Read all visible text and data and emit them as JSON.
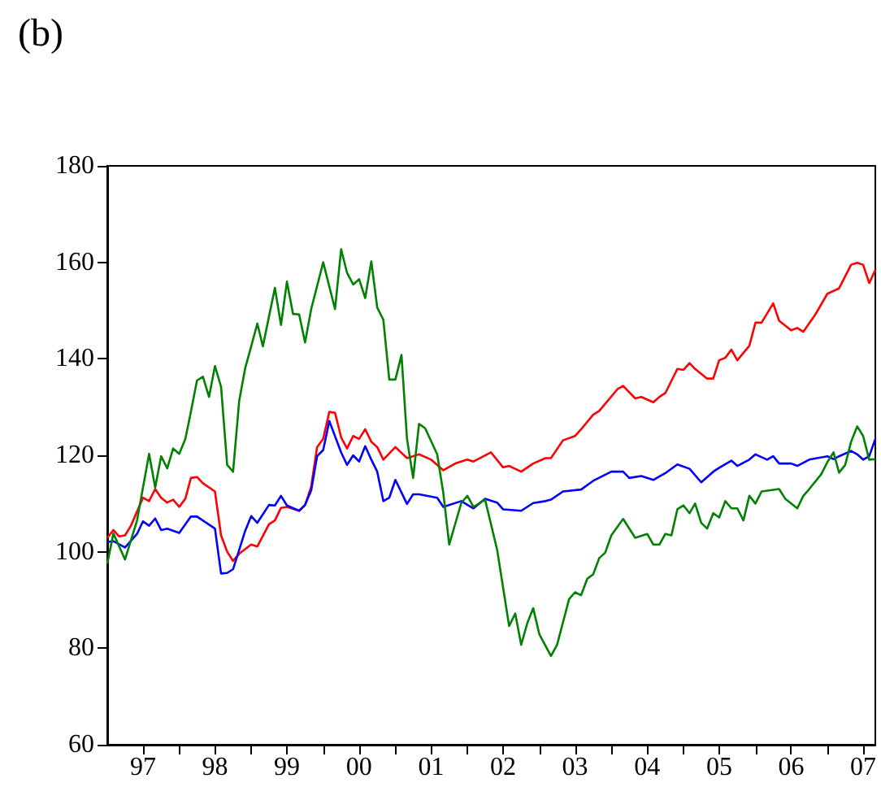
{
  "chart_data": {
    "type": "line",
    "title": "(b)",
    "xlim": [
      "1997-01",
      "2007-09"
    ],
    "xticks": [
      {
        "value": "1997-07",
        "label": "97"
      },
      {
        "value": "1998-01",
        "label": null
      },
      {
        "value": "1998-07",
        "label": "98"
      },
      {
        "value": "1999-01",
        "label": null
      },
      {
        "value": "1999-07",
        "label": "99"
      },
      {
        "value": "2000-01",
        "label": null
      },
      {
        "value": "2000-07",
        "label": "00"
      },
      {
        "value": "2001-01",
        "label": null
      },
      {
        "value": "2001-07",
        "label": "01"
      },
      {
        "value": "2002-01",
        "label": null
      },
      {
        "value": "2002-07",
        "label": "02"
      },
      {
        "value": "2003-01",
        "label": null
      },
      {
        "value": "2003-07",
        "label": "03"
      },
      {
        "value": "2004-01",
        "label": null
      },
      {
        "value": "2004-07",
        "label": "04"
      },
      {
        "value": "2005-01",
        "label": null
      },
      {
        "value": "2005-07",
        "label": "05"
      },
      {
        "value": "2006-01",
        "label": null
      },
      {
        "value": "2006-07",
        "label": "06"
      },
      {
        "value": "2007-01",
        "label": null
      },
      {
        "value": "2007-07",
        "label": "07"
      }
    ],
    "ylim": [
      60,
      180
    ],
    "yticks": [
      60,
      80,
      100,
      120,
      140,
      160,
      180
    ],
    "grid": false,
    "marker": "none",
    "line_style": "solid",
    "series": [
      {
        "color": "#ff0000",
        "x": [
          "1997-01",
          "1997-02",
          "1997-03",
          "1997-04",
          "1997-05",
          "1997-07",
          "1997-08",
          "1997-09",
          "1997-10",
          "1997-11",
          "1997-12",
          "1998-01",
          "1998-02",
          "1998-03",
          "1998-04",
          "1998-05",
          "1998-07",
          "1998-08",
          "1998-09",
          "1998-10",
          "1998-11",
          "1999-01",
          "1999-02",
          "1999-04",
          "1999-05",
          "1999-06",
          "1999-07",
          "1999-09",
          "1999-10",
          "1999-11",
          "1999-12",
          "2000-01",
          "2000-02",
          "2000-03",
          "2000-04",
          "2000-05",
          "2000-06",
          "2000-07",
          "2000-08",
          "2000-09",
          "2000-10",
          "2000-11",
          "2001-01",
          "2001-03",
          "2001-05",
          "2001-07",
          "2001-09",
          "2001-11",
          "2002-01",
          "2002-02",
          "2002-05",
          "2002-07",
          "2002-08",
          "2002-10",
          "2002-12",
          "2003-02",
          "2003-03",
          "2003-05",
          "2003-07",
          "2003-08",
          "2003-10",
          "2003-11",
          "2004-02",
          "2004-03",
          "2004-05",
          "2004-06",
          "2004-08",
          "2004-09",
          "2004-10",
          "2004-12",
          "2005-01",
          "2005-02",
          "2005-03",
          "2005-05",
          "2005-06",
          "2005-07",
          "2005-08",
          "2005-09",
          "2005-10",
          "2005-12",
          "2006-01",
          "2006-02",
          "2006-04",
          "2006-05",
          "2006-07",
          "2006-08",
          "2006-09",
          "2006-11",
          "2007-01",
          "2007-03",
          "2007-05",
          "2007-06",
          "2007-07",
          "2007-08",
          "2007-09"
        ],
        "values": [
          102.9,
          104.5,
          103.2,
          103.4,
          105.4,
          111.2,
          110.5,
          113,
          111.2,
          110.2,
          110.8,
          109.3,
          111,
          115.3,
          115.5,
          114.2,
          112.5,
          103.4,
          100,
          98.1,
          99.6,
          101.5,
          101.1,
          105.7,
          106.5,
          109.1,
          109.3,
          108.5,
          109.7,
          113.5,
          121.7,
          123.4,
          129,
          128.8,
          123.7,
          121.4,
          124,
          123.4,
          125.4,
          122.8,
          121.7,
          119.1,
          121.7,
          119.4,
          120.2,
          119.1,
          116.9,
          118.3,
          119.1,
          118.7,
          120.6,
          117.5,
          117.8,
          116.6,
          118.3,
          119.4,
          119.4,
          123.1,
          124,
          125.4,
          128.4,
          129.2,
          133.7,
          134.4,
          131.8,
          132.1,
          131,
          132.1,
          132.9,
          137.9,
          137.7,
          139.1,
          137.9,
          135.9,
          135.9,
          139.7,
          140.2,
          141.9,
          139.7,
          142.7,
          147.5,
          147.5,
          151.5,
          147.9,
          145.9,
          146.4,
          145.6,
          149.2,
          153.5,
          154.6,
          159.5,
          159.9,
          159.5,
          155.7,
          158.4
        ]
      },
      {
        "color": "#0000ff",
        "x": [
          "1997-01",
          "1997-02",
          "1997-04",
          "1997-06",
          "1997-07",
          "1997-08",
          "1997-09",
          "1997-10",
          "1997-11",
          "1998-01",
          "1998-03",
          "1998-04",
          "1998-07",
          "1998-08",
          "1998-09",
          "1998-10",
          "1998-12",
          "1999-01",
          "1999-02",
          "1999-04",
          "1999-05",
          "1999-06",
          "1999-07",
          "1999-09",
          "1999-10",
          "1999-11",
          "1999-12",
          "2000-01",
          "2000-02",
          "2000-04",
          "2000-05",
          "2000-06",
          "2000-07",
          "2000-08",
          "2000-09",
          "2000-10",
          "2000-11",
          "2000-12",
          "2001-01",
          "2001-03",
          "2001-04",
          "2001-05",
          "2001-08",
          "2001-09",
          "2001-12",
          "2002-02",
          "2002-04",
          "2002-06",
          "2002-07",
          "2002-10",
          "2002-12",
          "2003-02",
          "2003-03",
          "2003-05",
          "2003-08",
          "2003-10",
          "2004-01",
          "2004-03",
          "2004-04",
          "2004-06",
          "2004-08",
          "2004-10",
          "2004-12",
          "2005-02",
          "2005-04",
          "2005-06",
          "2005-07",
          "2005-09",
          "2005-10",
          "2005-12",
          "2006-01",
          "2006-03",
          "2006-04",
          "2006-05",
          "2006-07",
          "2006-08",
          "2006-10",
          "2007-01",
          "2007-02",
          "2007-03",
          "2007-05",
          "2007-06",
          "2007-07",
          "2007-08",
          "2007-09"
        ],
        "values": [
          102.0,
          102.2,
          100.9,
          103.7,
          106.3,
          105.4,
          106.9,
          104.5,
          104.8,
          103.9,
          107.3,
          107.3,
          104.8,
          95.5,
          95.6,
          96.4,
          104.3,
          107.4,
          106,
          109.7,
          109.6,
          111.6,
          109.6,
          108.5,
          109.7,
          112.7,
          119.8,
          121.1,
          127.1,
          120.6,
          118,
          120,
          118.7,
          121.9,
          119.1,
          116.6,
          110.5,
          111.2,
          114.9,
          109.9,
          111.9,
          111.9,
          111.2,
          109.3,
          110.5,
          109,
          111,
          110.2,
          108.8,
          108.5,
          110.1,
          110.5,
          110.8,
          112.5,
          112.9,
          114.7,
          116.6,
          116.6,
          115.3,
          115.7,
          114.9,
          116.3,
          118.1,
          117.2,
          114.4,
          116.6,
          117.4,
          118.9,
          117.8,
          119.1,
          120.2,
          119.1,
          119.8,
          118.3,
          118.3,
          117.8,
          119.1,
          119.8,
          119.2,
          119.8,
          120.9,
          120.2,
          119.1,
          119.8,
          123.4
        ]
      },
      {
        "color": "#008000",
        "x": [
          "1997-01",
          "1997-02",
          "1997-04",
          "1997-06",
          "1997-08",
          "1997-09",
          "1997-10",
          "1997-11",
          "1997-12",
          "1998-01",
          "1998-02",
          "1998-03",
          "1998-04",
          "1998-05",
          "1998-06",
          "1998-07",
          "1998-08",
          "1998-09",
          "1998-10",
          "1998-11",
          "1998-12",
          "1999-01",
          "1999-02",
          "1999-03",
          "1999-05",
          "1999-06",
          "1999-07",
          "1999-08",
          "1999-09",
          "1999-10",
          "1999-11",
          "2000-01",
          "2000-03",
          "2000-04",
          "2000-05",
          "2000-06",
          "2000-07",
          "2000-08",
          "2000-09",
          "2000-10",
          "2000-11",
          "2000-12",
          "2001-01",
          "2001-02",
          "2001-03",
          "2001-04",
          "2001-05",
          "2001-06",
          "2001-08",
          "2001-09",
          "2001-10",
          "2001-12",
          "2002-01",
          "2002-02",
          "2002-04",
          "2002-06",
          "2002-08",
          "2002-09",
          "2002-10",
          "2002-11",
          "2002-12",
          "2003-01",
          "2003-03",
          "2003-04",
          "2003-06",
          "2003-07",
          "2003-08",
          "2003-09",
          "2003-10",
          "2003-11",
          "2003-12",
          "2004-01",
          "2004-03",
          "2004-05",
          "2004-07",
          "2004-08",
          "2004-09",
          "2004-10",
          "2004-11",
          "2004-12",
          "2005-01",
          "2005-02",
          "2005-03",
          "2005-04",
          "2005-05",
          "2005-06",
          "2005-07",
          "2005-08",
          "2005-09",
          "2005-10",
          "2005-11",
          "2005-12",
          "2006-01",
          "2006-02",
          "2006-05",
          "2006-06",
          "2006-08",
          "2006-09",
          "2006-10",
          "2006-12",
          "2007-01",
          "2007-02",
          "2007-03",
          "2007-04",
          "2007-05",
          "2007-06",
          "2007-07",
          "2007-08",
          "2007-09"
        ],
        "values": [
          97.5,
          103.8,
          98.4,
          106.5,
          120.3,
          113.3,
          119.8,
          117.3,
          121.4,
          120.3,
          123.4,
          129,
          135.5,
          136.3,
          132.1,
          138.5,
          134.2,
          118,
          116.6,
          131.3,
          138,
          142.6,
          147.3,
          142.6,
          154.7,
          147,
          156,
          149.3,
          149.2,
          143.4,
          150.3,
          160,
          150.3,
          162.7,
          157.8,
          155.4,
          156.5,
          152.6,
          160.2,
          150.6,
          148.1,
          135.7,
          135.7,
          140.8,
          123.4,
          115.3,
          126.5,
          125.6,
          120.2,
          112.2,
          101.5,
          110.1,
          111.6,
          109.3,
          110.8,
          100.4,
          84.6,
          87.2,
          80.7,
          85.2,
          88.3,
          82.9,
          78.4,
          80.7,
          90.2,
          91.6,
          91.0,
          94.4,
          95.3,
          98.7,
          99.8,
          103.4,
          106.8,
          102.9,
          103.7,
          101.5,
          101.5,
          103.7,
          103.4,
          108.8,
          109.6,
          108,
          110,
          106,
          104.8,
          108,
          107.1,
          110.5,
          109,
          109,
          106.5,
          111.6,
          110,
          112.5,
          113,
          111,
          109,
          111.6,
          113,
          116.1,
          118.6,
          120.6,
          116.4,
          118,
          122.8,
          126,
          124,
          119.1,
          119.2
        ]
      }
    ]
  }
}
